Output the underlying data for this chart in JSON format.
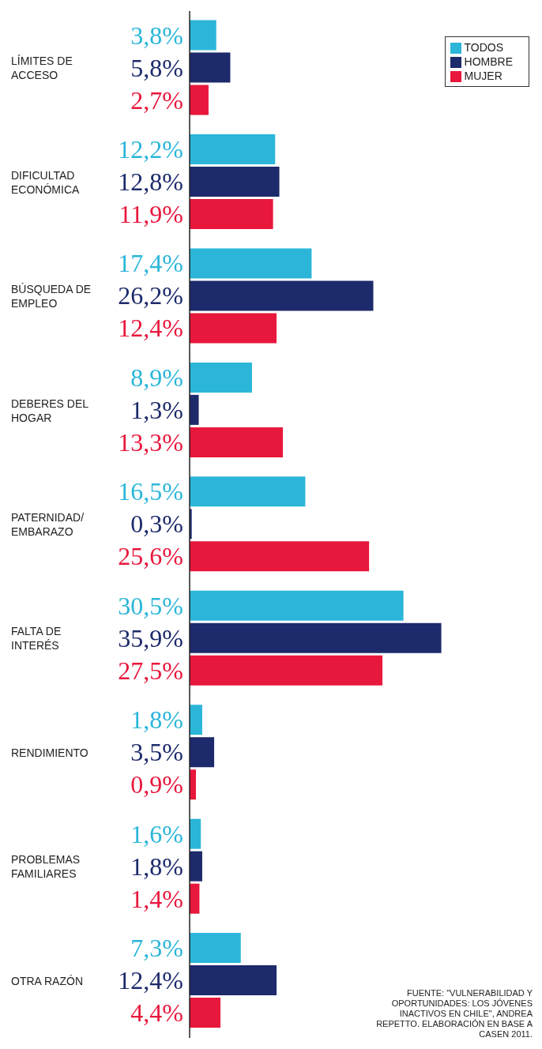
{
  "chart_data": {
    "type": "bar",
    "orientation": "horizontal",
    "tick_labels": "y",
    "legend": "top right",
    "categories": [
      "LÍMITES DE ACCESO",
      "DIFICULTAD ECONÓMICA",
      "BÚSQUEDA DE EMPLEO",
      "DEBERES DEL HOGAR",
      "PATERNIDAD/ EMBARAZO",
      "FALTA DE INTERÉS",
      "RENDIMIENTO",
      "PROBLEMAS FAMILIARES",
      "OTRA RAZÓN"
    ],
    "series": [
      {
        "name": "TODOS",
        "color": "#2bb6d9",
        "values": [
          3.8,
          12.2,
          17.4,
          8.9,
          16.5,
          30.5,
          1.8,
          1.6,
          7.3
        ],
        "value_labels": [
          "3,8%",
          "12,2%",
          "17,4%",
          "8,9%",
          "16,5%",
          "30,5%",
          "1,8%",
          "1,6%",
          "7,3%"
        ]
      },
      {
        "name": "HOMBRE",
        "color": "#1d2a6b",
        "values": [
          5.8,
          12.8,
          26.2,
          1.3,
          0.3,
          35.9,
          3.5,
          1.8,
          12.4
        ],
        "value_labels": [
          "5,8%",
          "12,8%",
          "26,2%",
          "1,3%",
          "0,3%",
          "35,9%",
          "3,5%",
          "1,8%",
          "12,4%"
        ]
      },
      {
        "name": "MUJER",
        "color": "#e8173c",
        "values": [
          2.7,
          11.9,
          12.4,
          13.3,
          25.6,
          27.5,
          0.9,
          1.4,
          4.4
        ],
        "value_labels": [
          "2,7%",
          "11,9%",
          "12,4%",
          "13,3%",
          "25,6%",
          "27,5%",
          "0,9%",
          "1,4%",
          "4,4%"
        ]
      }
    ],
    "annotations": [
      "FUENTE: \"VULNERABILIDAD Y OPORTUNIDADES: LOS JÓVENES INACTIVOS EN CHILE\", ANDREA REPETTO. ELABORACIÓN EN BASE A CASEN 2011."
    ]
  }
}
